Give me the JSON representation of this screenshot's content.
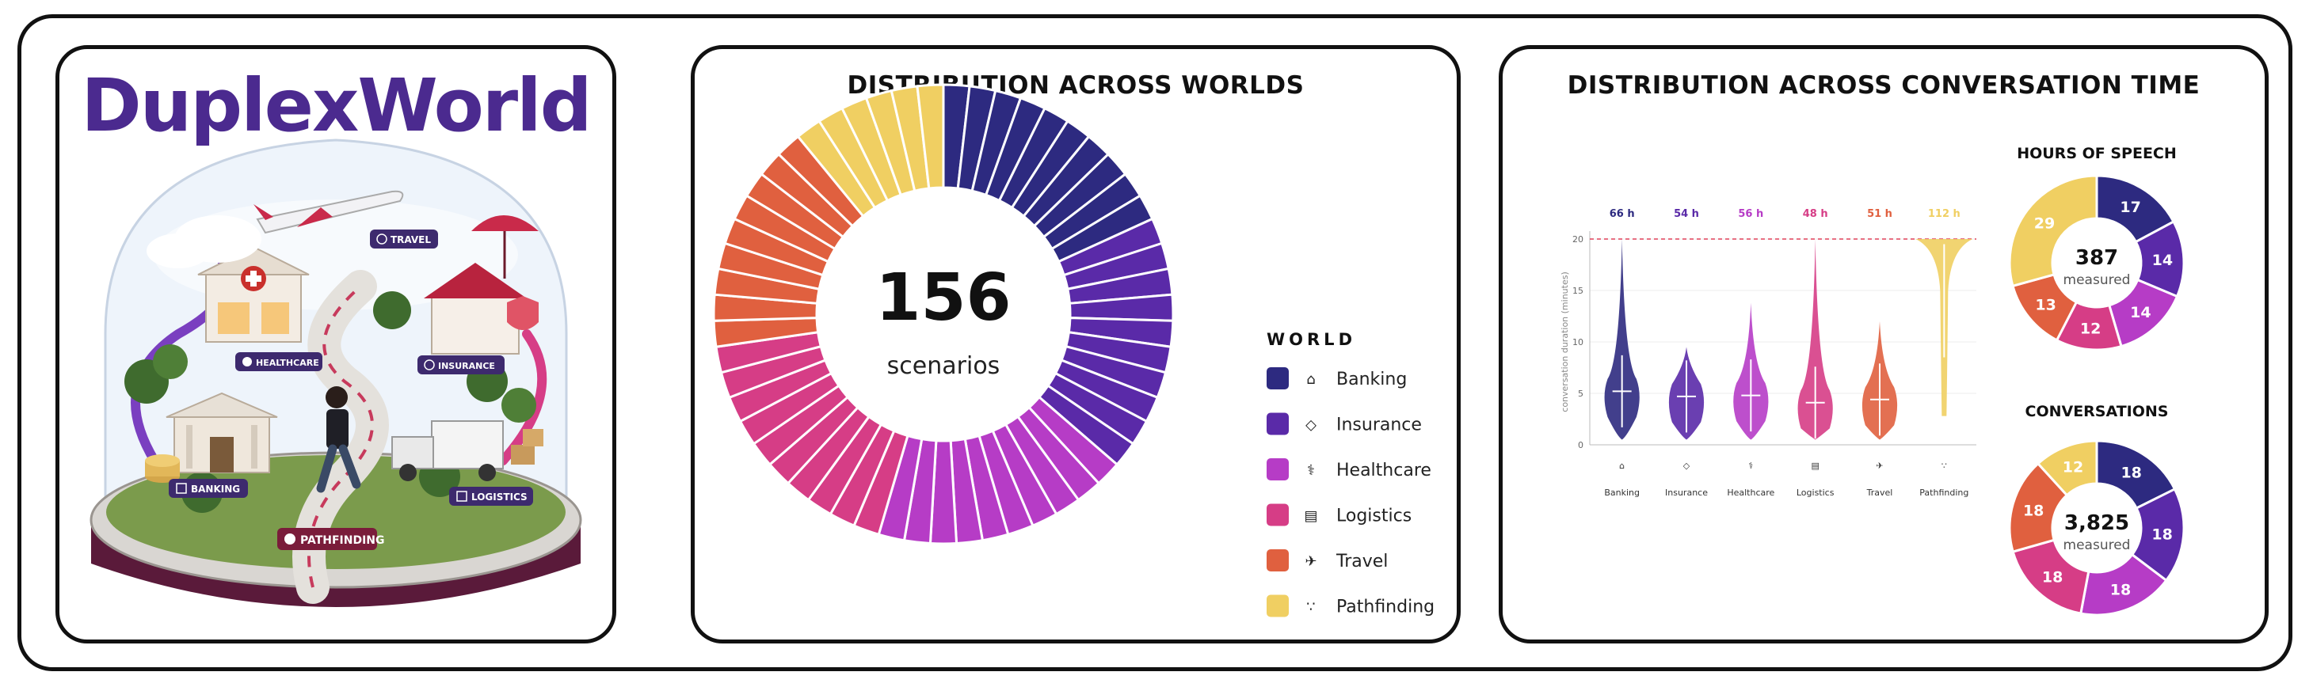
{
  "illustration": {
    "brand_title": "DuplexWorld",
    "signs": {
      "travel": "TRAVEL",
      "healthcare": "HEALTHCARE",
      "insurance": "INSURANCE",
      "banking": "BANKING",
      "logistics": "LOGISTICS",
      "pathfinding": "PATHFINDING"
    }
  },
  "chart_data": [
    {
      "type": "pie",
      "title": "DISTRIBUTION ACROSS WORLDS",
      "center_value": "156",
      "center_label": "scenarios",
      "legend_title": "WORLD",
      "legend_placement": "right",
      "categories": [
        "Banking",
        "Insurance",
        "Healthcare",
        "Logistics",
        "Travel",
        "Pathfinding"
      ],
      "values": [
        10,
        10,
        10,
        10,
        9,
        6
      ],
      "colors": [
        "#2d2a80",
        "#5a2aa8",
        "#b63cc6",
        "#d63d86",
        "#e0603f",
        "#f0cf62"
      ],
      "icons": [
        "bank-icon",
        "shield-icon",
        "stethoscope-icon",
        "truck-icon",
        "plane-icon",
        "footsteps-icon"
      ]
    },
    {
      "type": "violin",
      "title": "DISTRIBUTION ACROSS CONVERSATION TIME",
      "ylabel": "conversation duration (minutes)",
      "ylim": [
        0,
        20
      ],
      "yticks": [
        0,
        5,
        10,
        15,
        20
      ],
      "reference_line": 20,
      "categories": [
        "Banking",
        "Insurance",
        "Healthcare",
        "Logistics",
        "Travel",
        "Pathfinding"
      ],
      "hour_labels": [
        "66 h",
        "54 h",
        "56 h",
        "48 h",
        "51 h",
        "112 h"
      ],
      "medians": [
        5.2,
        4.7,
        4.8,
        4.1,
        4.4,
        20
      ],
      "min": [
        0.5,
        0.5,
        0.5,
        0.5,
        0.5,
        2.8
      ],
      "max": [
        20,
        9.5,
        13.8,
        20,
        12,
        20
      ],
      "icons": [
        "bank-icon",
        "shield-icon",
        "stethoscope-icon",
        "truck-icon",
        "plane-icon",
        "footsteps-icon"
      ]
    },
    {
      "type": "pie",
      "title": "HOURS OF SPEECH",
      "center_value": "387",
      "center_label": "measured",
      "categories": [
        "Banking",
        "Insurance",
        "Healthcare",
        "Logistics",
        "Travel",
        "Pathfinding"
      ],
      "values": [
        17,
        14,
        14,
        12,
        13,
        29
      ]
    },
    {
      "type": "pie",
      "title": "CONVERSATIONS",
      "center_value": "3,825",
      "center_label": "measured",
      "categories": [
        "Banking",
        "Insurance",
        "Healthcare",
        "Logistics",
        "Travel",
        "Pathfinding"
      ],
      "values": [
        18,
        18,
        18,
        18,
        18,
        12
      ]
    }
  ]
}
